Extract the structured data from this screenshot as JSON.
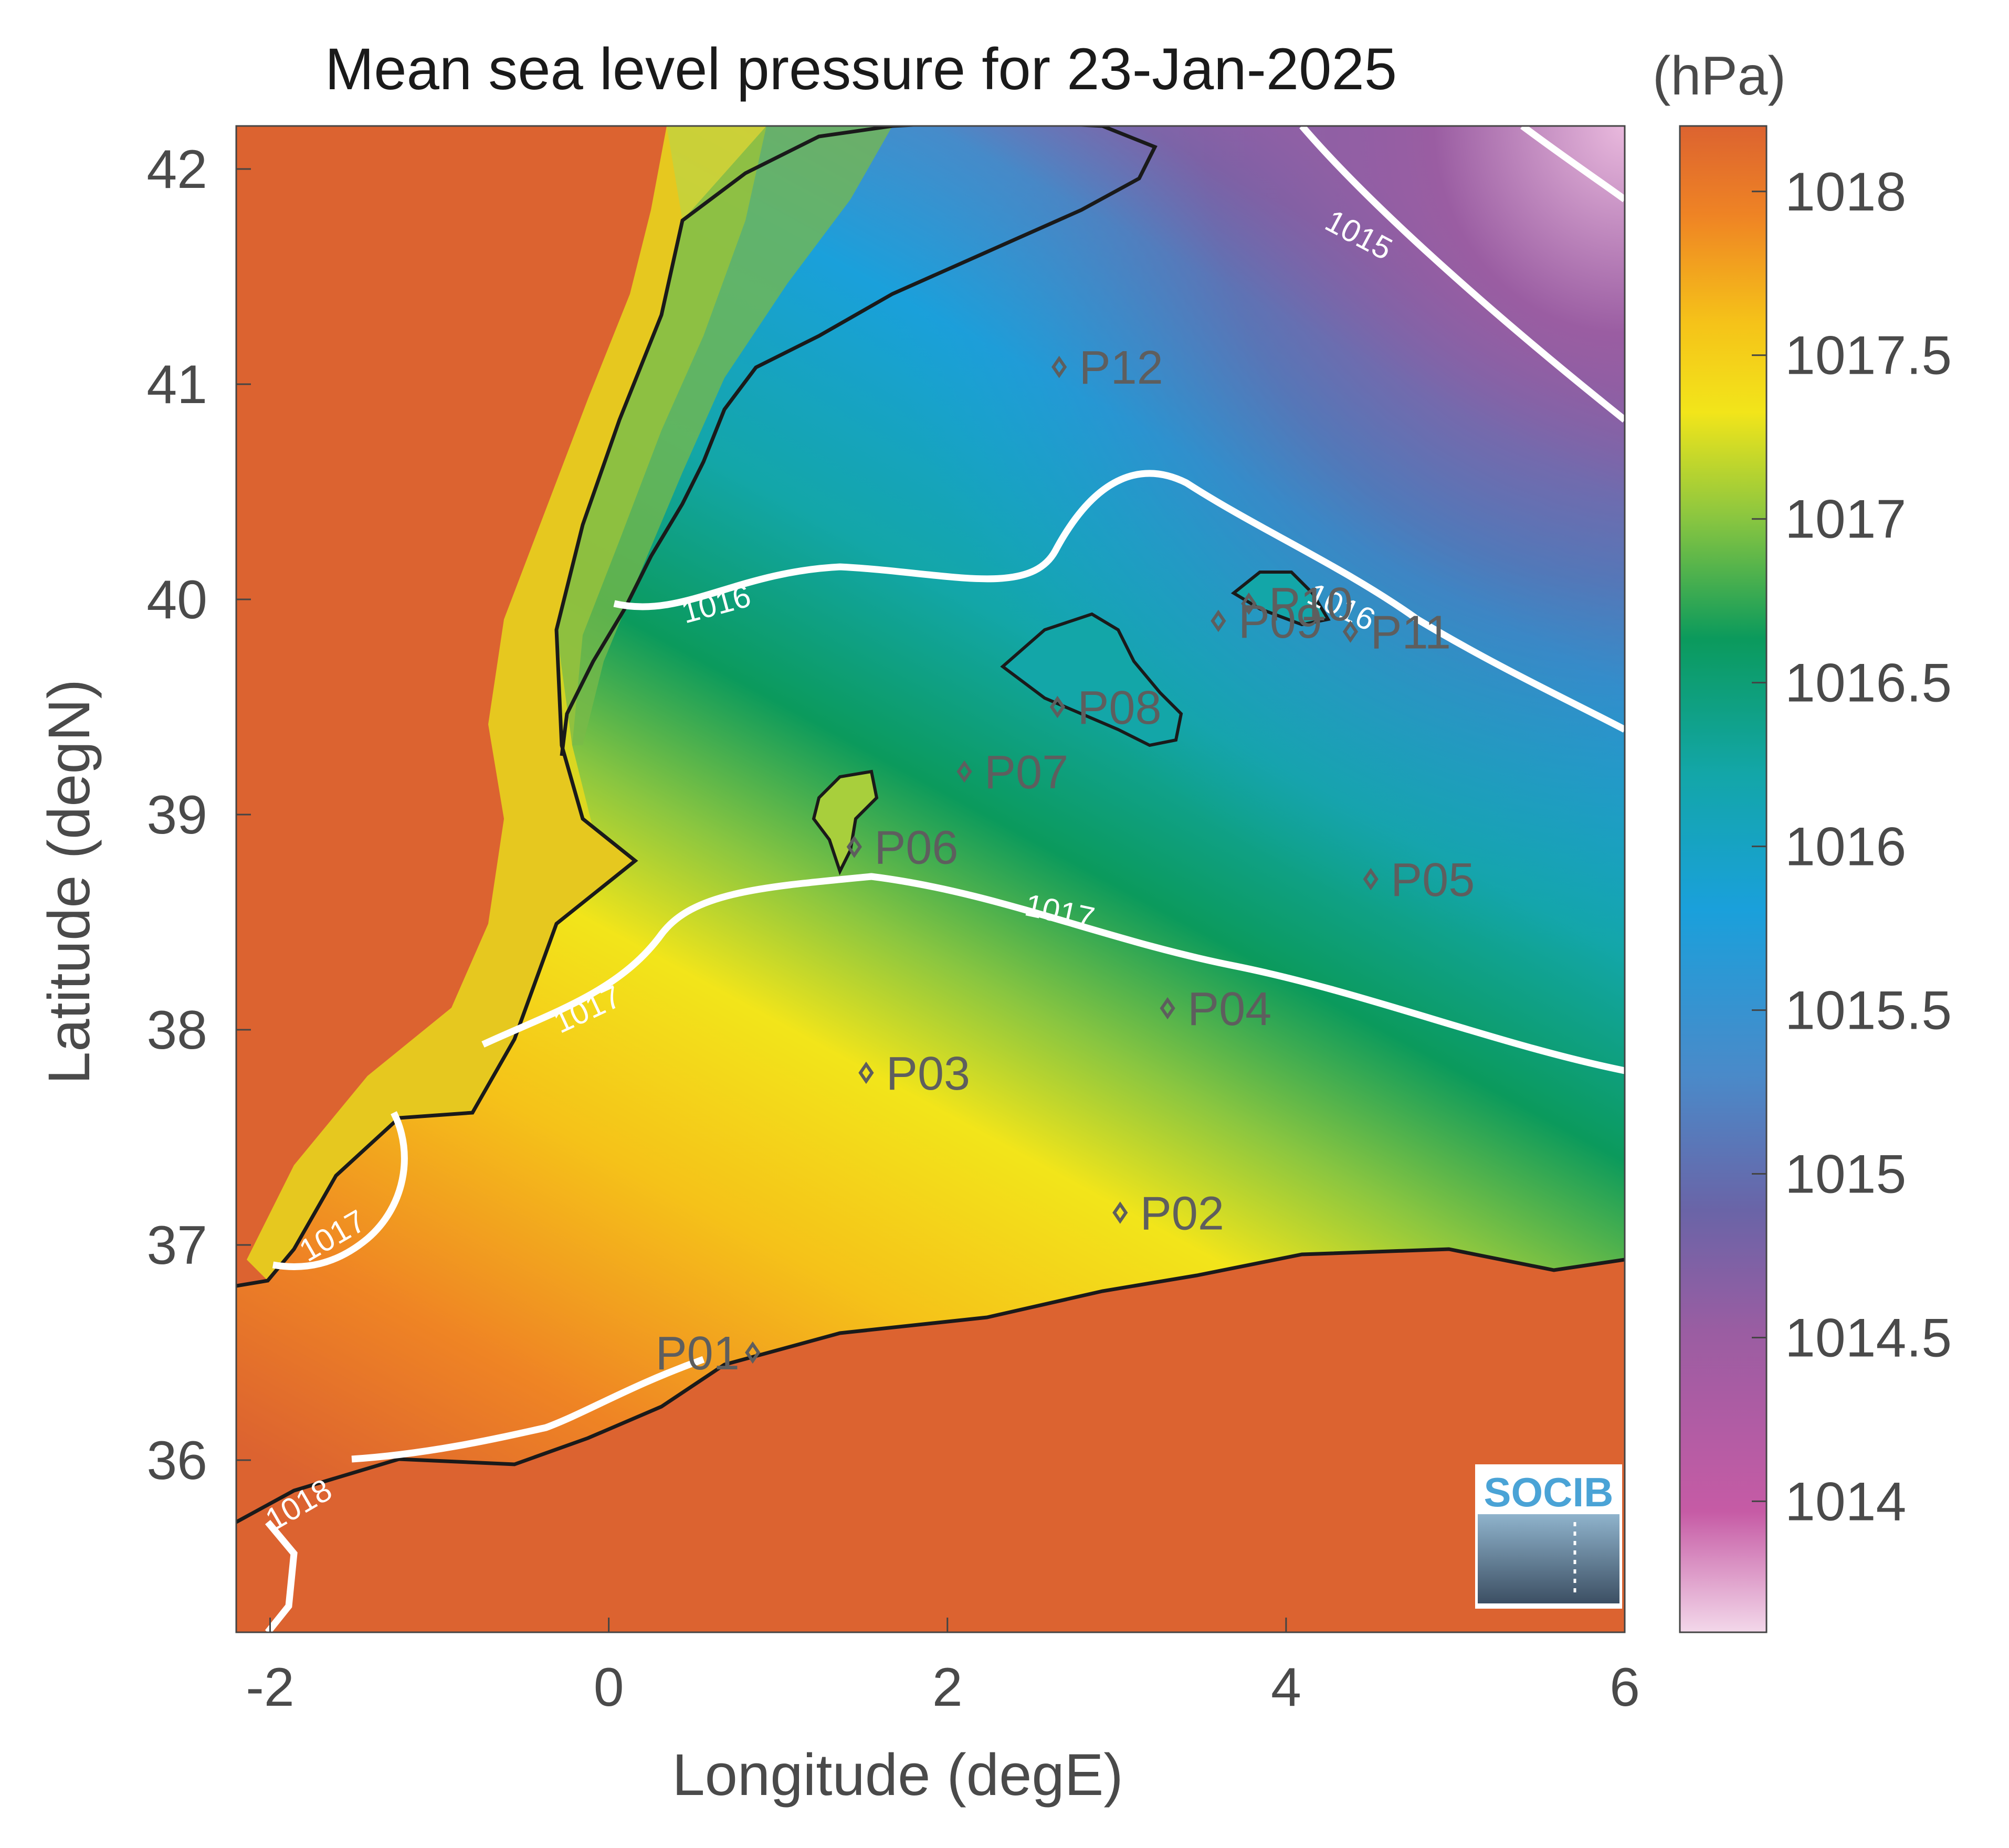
{
  "title": "Mean sea level pressure for 23-Jan-2025",
  "units": "(hPa)",
  "xlabel": "Longitude (degE)",
  "ylabel": "Latitude (degN)",
  "x_ticks": [
    "-2",
    "0",
    "2",
    "4",
    "6"
  ],
  "y_ticks": [
    "42",
    "41",
    "40",
    "39",
    "38",
    "37",
    "36"
  ],
  "colorbar": {
    "ticks": [
      "1018",
      "1017.5",
      "1017",
      "1016.5",
      "1016",
      "1015.5",
      "1015",
      "1014.5",
      "1014"
    ],
    "range": [
      1013.6,
      1018.2
    ],
    "colors": [
      "#f3d8ea",
      "#c65ba5",
      "#9a5da2",
      "#6a64a7",
      "#4a8ac9",
      "#1aa0db",
      "#13a6a8",
      "#0b9a5c",
      "#8ac640",
      "#f2e51a",
      "#f5c219",
      "#ef8424",
      "#dc6330"
    ]
  },
  "chart_data": {
    "type": "heatmap",
    "title": "Mean sea level pressure for 23-Jan-2025",
    "xlabel": "Longitude (degE)",
    "ylabel": "Latitude (degN)",
    "xlim": [
      -2.2,
      6.0
    ],
    "ylim": [
      35.2,
      42.2
    ],
    "contour_levels": [
      1015,
      1016,
      1017,
      1018
    ],
    "contour_labels": [
      {
        "text": "1015",
        "lon": 4.4,
        "lat": 41.65
      },
      {
        "text": "1016",
        "lon": 0.65,
        "lat": 39.93
      },
      {
        "text": "1016",
        "lon": 4.3,
        "lat": 39.92
      },
      {
        "text": "1017",
        "lon": 2.65,
        "lat": 38.5
      },
      {
        "text": "1017",
        "lon": -0.1,
        "lat": 38.05
      },
      {
        "text": "1017",
        "lon": -1.6,
        "lat": 37.0
      },
      {
        "text": "1018",
        "lon": -1.8,
        "lat": 35.75
      }
    ],
    "stations": [
      {
        "name": "P01",
        "lon": 0.85,
        "lat": 36.5
      },
      {
        "name": "P02",
        "lon": 3.02,
        "lat": 37.15
      },
      {
        "name": "P03",
        "lon": 1.52,
        "lat": 37.8
      },
      {
        "name": "P04",
        "lon": 3.3,
        "lat": 38.1
      },
      {
        "name": "P05",
        "lon": 4.5,
        "lat": 38.7
      },
      {
        "name": "P06",
        "lon": 1.45,
        "lat": 38.85
      },
      {
        "name": "P07",
        "lon": 2.1,
        "lat": 39.2
      },
      {
        "name": "P08",
        "lon": 2.65,
        "lat": 39.5
      },
      {
        "name": "P09",
        "lon": 3.6,
        "lat": 39.9
      },
      {
        "name": "P10",
        "lon": 3.78,
        "lat": 39.98
      },
      {
        "name": "P11",
        "lon": 4.38,
        "lat": 39.85
      },
      {
        "name": "P12",
        "lon": 2.66,
        "lat": 41.08
      }
    ]
  },
  "logo": {
    "text": "SOCIB"
  }
}
